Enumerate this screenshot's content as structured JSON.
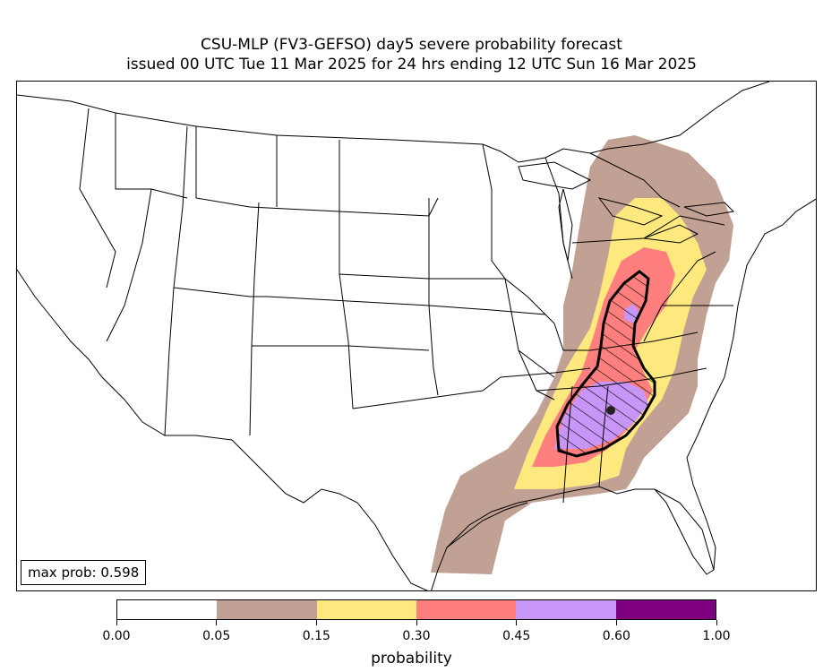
{
  "title": {
    "line1": "CSU-MLP (FV3-GEFSO) day5 severe probability forecast",
    "line2": "issued 00 UTC Tue 11 Mar 2025 for 24 hrs ending 12 UTC Sun 16 Mar 2025"
  },
  "max_prob": "max prob: 0.598",
  "colorbar": {
    "label": "probability",
    "ticks": [
      "0.00",
      "0.05",
      "0.15",
      "0.30",
      "0.45",
      "0.60",
      "1.00"
    ],
    "colors": [
      "#ffffff",
      "#c1a193",
      "#ffe97f",
      "#ff7f7f",
      "#c896f7",
      "#7e007e"
    ]
  },
  "map": {
    "region": "CONUS",
    "contour_colors": {
      "p05": "#c1a193",
      "p15": "#ffe97f",
      "p30": "#ff7f7f",
      "p45": "#c896f7"
    },
    "hatch_outline": "significant",
    "max_marker": "max-point"
  }
}
